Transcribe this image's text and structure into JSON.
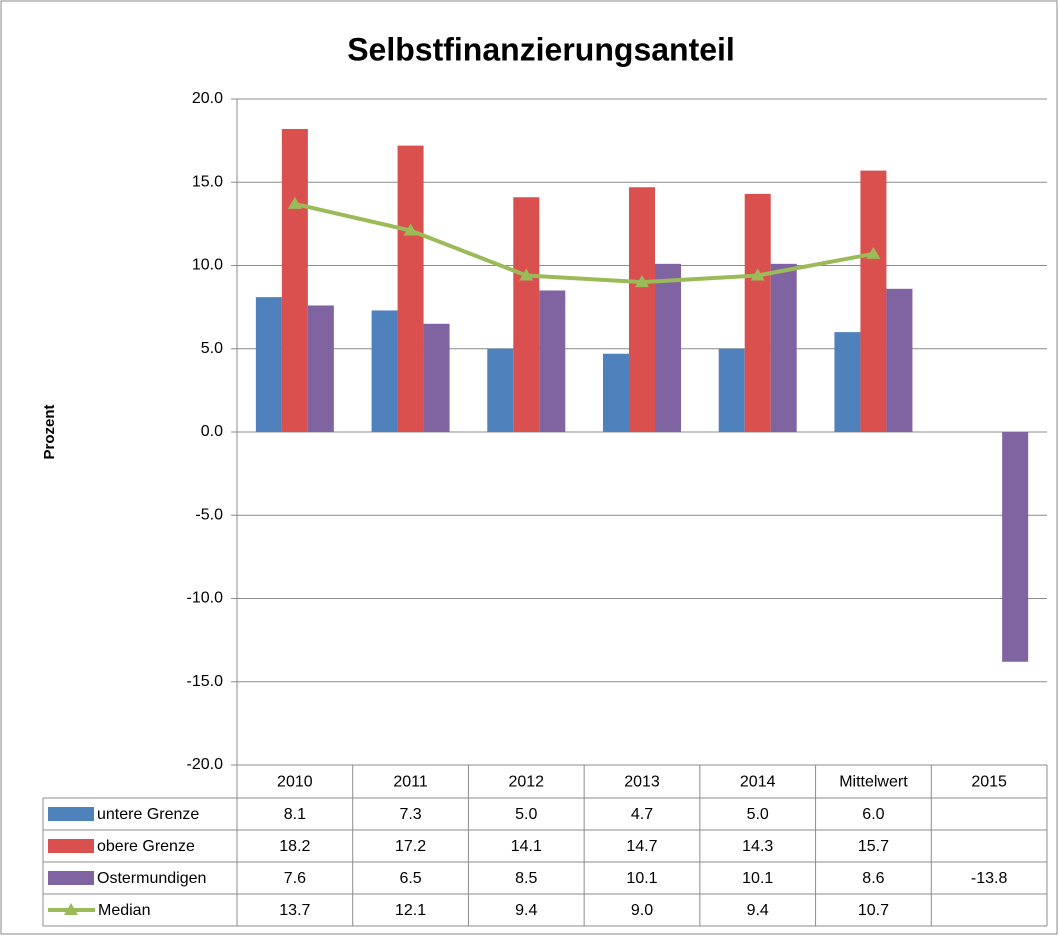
{
  "chart_data": {
    "type": "bar",
    "title": "Selbstfinanzierungsanteil",
    "y_label": "Prozent",
    "categories": [
      "2010",
      "2011",
      "2012",
      "2013",
      "2014",
      "Mittelwert",
      "2015"
    ],
    "series": [
      {
        "name": "untere Grenze",
        "color": "#4f81bd",
        "type": "bar",
        "values": [
          8.1,
          7.3,
          5.0,
          4.7,
          5.0,
          6.0,
          null
        ],
        "value_labels": [
          "8.1",
          "7.3",
          "5.0",
          "4.7",
          "5.0",
          "6.0",
          null
        ]
      },
      {
        "name": "obere Grenze",
        "color": "#d9504f",
        "type": "bar",
        "values": [
          18.2,
          17.2,
          14.1,
          14.7,
          14.3,
          15.7,
          null
        ],
        "value_labels": [
          "18.2",
          "17.2",
          "14.1",
          "14.7",
          "14.3",
          "15.7",
          null
        ]
      },
      {
        "name": "Ostermundigen",
        "color": "#8064a2",
        "type": "bar",
        "values": [
          7.6,
          6.5,
          8.5,
          10.1,
          10.1,
          8.6,
          -13.8
        ],
        "value_labels": [
          "7.6",
          "6.5",
          "8.5",
          "10.1",
          "10.1",
          "8.6",
          "-13.8"
        ]
      },
      {
        "name": "Median",
        "color": "#9bbb59",
        "type": "line",
        "values": [
          13.7,
          12.1,
          9.4,
          9.0,
          9.4,
          10.7,
          null
        ],
        "value_labels": [
          "13.7",
          "12.1",
          "9.4",
          "9.0",
          "9.4",
          "10.7",
          null
        ]
      }
    ],
    "ylim": [
      -20,
      20
    ],
    "yticks": [
      {
        "value": -20,
        "label": "-20.0"
      },
      {
        "value": -15,
        "label": "-15.0"
      },
      {
        "value": -10,
        "label": "-10.0"
      },
      {
        "value": -5,
        "label": "-5.0"
      },
      {
        "value": 0,
        "label": "0.0"
      },
      {
        "value": 5,
        "label": "5.0"
      },
      {
        "value": 10,
        "label": "10.0"
      },
      {
        "value": 15,
        "label": "15.0"
      },
      {
        "value": 20,
        "label": "20.0"
      }
    ],
    "grid": true
  }
}
